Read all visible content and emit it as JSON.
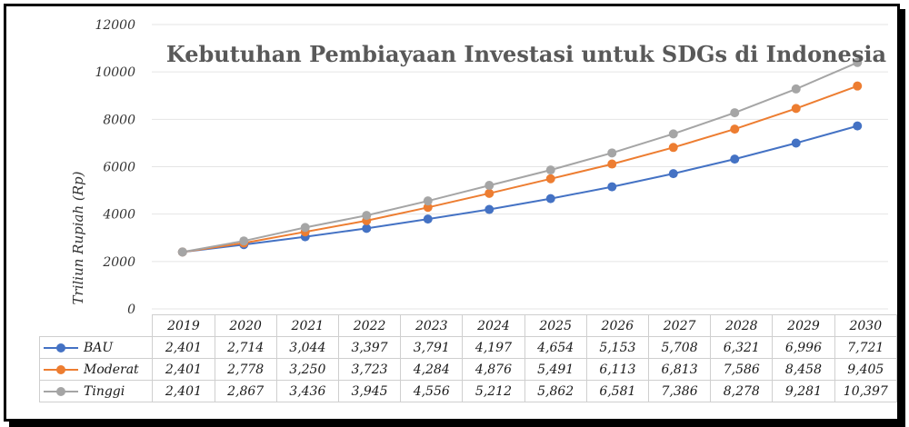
{
  "chart_data": {
    "type": "line",
    "title": "Kebutuhan Pembiayaan Investasi untuk SDGs di Indonesia",
    "xlabel": "",
    "ylabel": "Triliun Rupiah (Rp)",
    "ylim": [
      0,
      12000
    ],
    "y_ticks": [
      "0",
      "2000",
      "4000",
      "6000",
      "8000",
      "10000",
      "12000"
    ],
    "grid": true,
    "legend": "data table",
    "categories": [
      "2019",
      "2020",
      "2021",
      "2022",
      "2023",
      "2024",
      "2025",
      "2026",
      "2027",
      "2028",
      "2029",
      "2030"
    ],
    "series": [
      {
        "name": "BAU",
        "color": "#4472C4",
        "values": [
          2401,
          2714,
          3044,
          3397,
          3791,
          4197,
          4654,
          5153,
          5708,
          6321,
          6996,
          7721
        ],
        "labels": [
          "2,401",
          "2,714",
          "3,044",
          "3,397",
          "3,791",
          "4,197",
          "4,654",
          "5,153",
          "5,708",
          "6,321",
          "6,996",
          "7,721"
        ]
      },
      {
        "name": "Moderat",
        "color": "#ED7D31",
        "values": [
          2401,
          2778,
          3250,
          3723,
          4284,
          4876,
          5491,
          6113,
          6813,
          7586,
          8458,
          9405
        ],
        "labels": [
          "2,401",
          "2,778",
          "3,250",
          "3,723",
          "4,284",
          "4,876",
          "5,491",
          "6,113",
          "6,813",
          "7,586",
          "8,458",
          "9,405"
        ]
      },
      {
        "name": "Tinggi",
        "color": "#A5A5A5",
        "values": [
          2401,
          2867,
          3436,
          3945,
          4556,
          5212,
          5862,
          6581,
          7386,
          8278,
          9281,
          10397
        ],
        "labels": [
          "2,401",
          "2,867",
          "3,436",
          "3,945",
          "4,556",
          "5,212",
          "5,862",
          "6,581",
          "7,386",
          "8,278",
          "9,281",
          "10,397"
        ]
      }
    ]
  }
}
